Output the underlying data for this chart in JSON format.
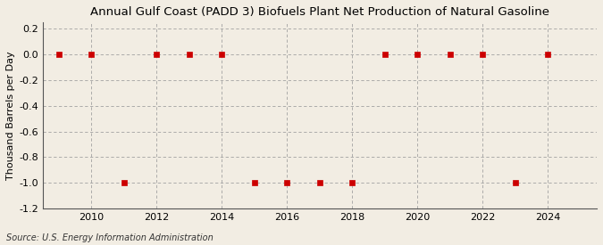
{
  "title": "Annual Gulf Coast (PADD 3) Biofuels Plant Net Production of Natural Gasoline",
  "ylabel": "Thousand Barrels per Day",
  "source": "Source: U.S. Energy Information Administration",
  "years": [
    2009,
    2010,
    2011,
    2012,
    2013,
    2014,
    2015,
    2016,
    2017,
    2018,
    2019,
    2020,
    2021,
    2022,
    2023,
    2024
  ],
  "values": [
    0.0,
    0.0,
    -1.0,
    0.0,
    0.0,
    0.0,
    -1.0,
    -1.0,
    -1.0,
    -1.0,
    0.0,
    0.0,
    0.0,
    0.0,
    -1.0,
    0.0
  ],
  "xlim": [
    2008.5,
    2025.5
  ],
  "ylim": [
    -1.2,
    0.25
  ],
  "yticks": [
    0.2,
    0.0,
    -0.2,
    -0.4,
    -0.6,
    -0.8,
    -1.0,
    -1.2
  ],
  "xticks": [
    2010,
    2012,
    2014,
    2016,
    2018,
    2020,
    2022,
    2024
  ],
  "marker_color": "#cc0000",
  "marker_size": 4,
  "background_color": "#f2ede3",
  "plot_background": "#f2ede3",
  "grid_color": "#999999",
  "title_fontsize": 9.5,
  "axis_label_fontsize": 8,
  "tick_fontsize": 8,
  "source_fontsize": 7
}
